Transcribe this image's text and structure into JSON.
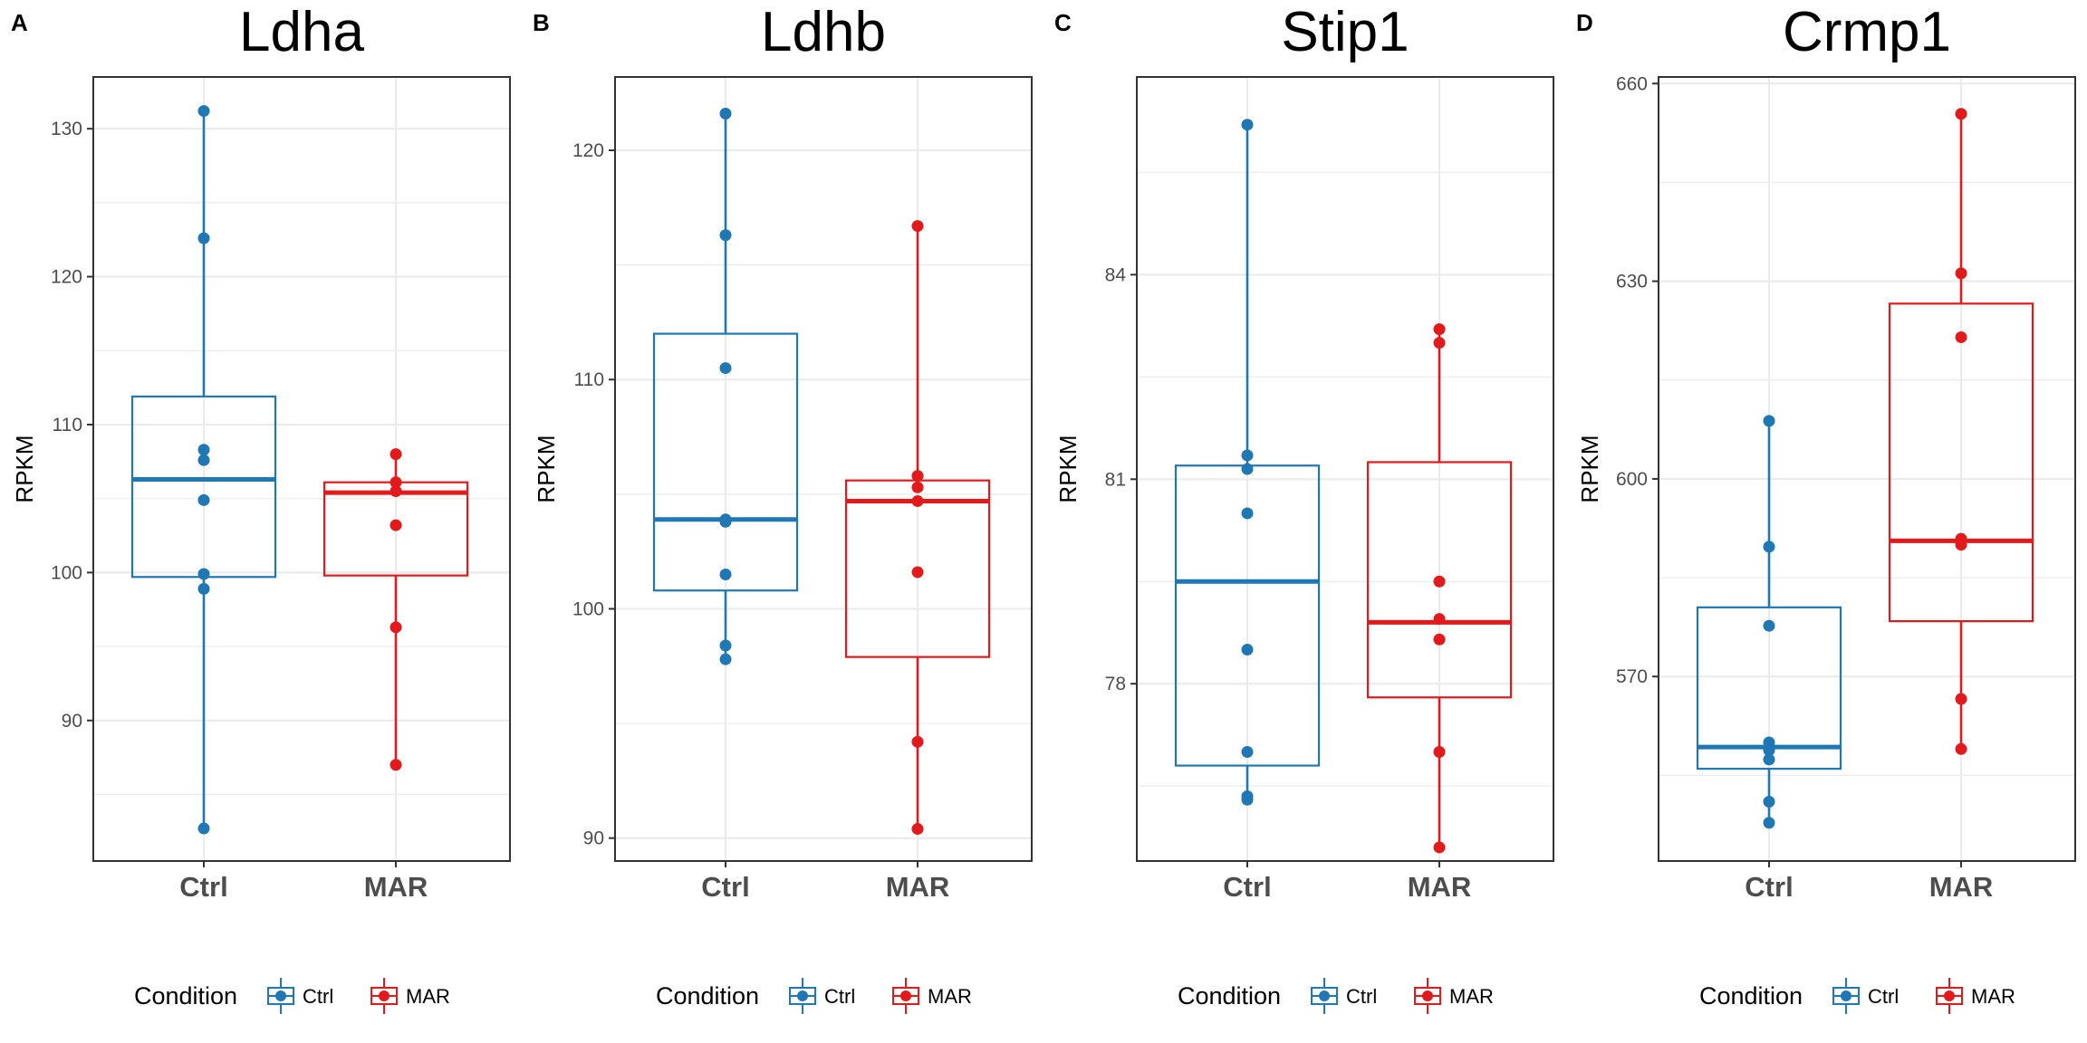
{
  "colors": {
    "ctrl": "#1F77B4",
    "mar": "#E31A1C",
    "axis_text": "#4D4D4D",
    "grid": "#EBEBEB",
    "panel_border": "#333333"
  },
  "legend": {
    "title": "Condition",
    "entries": [
      "Ctrl",
      "MAR"
    ]
  },
  "chart_data": [
    {
      "panel": "A",
      "type": "boxplot",
      "title": "Ldha",
      "ylabel": "RPKM",
      "xlabel": "",
      "categories": [
        "Ctrl",
        "MAR"
      ],
      "ylim": [
        80.5,
        133.5
      ],
      "yticks": [
        90,
        100,
        110,
        120,
        130
      ],
      "grid": true,
      "legend_position": "bottom",
      "series": [
        {
          "name": "Ctrl",
          "q1": 99.7,
          "median": 106.3,
          "q3": 111.9,
          "whisker_low": 82.7,
          "whisker_high": 131.2,
          "points": [
            131.2,
            122.6,
            108.3,
            107.6,
            104.9,
            99.9,
            98.9,
            82.7
          ]
        },
        {
          "name": "MAR",
          "q1": 99.8,
          "median": 105.4,
          "q3": 106.1,
          "whisker_low": 87.0,
          "whisker_high": 108.0,
          "points": [
            108.0,
            106.1,
            105.5,
            103.2,
            96.3,
            87.0
          ]
        }
      ]
    },
    {
      "panel": "B",
      "type": "boxplot",
      "title": "Ldhb",
      "ylabel": "RPKM",
      "xlabel": "",
      "categories": [
        "Ctrl",
        "MAR"
      ],
      "ylim": [
        89.0,
        123.2
      ],
      "yticks": [
        90,
        100,
        110,
        120
      ],
      "grid": true,
      "legend_position": "bottom",
      "series": [
        {
          "name": "Ctrl",
          "q1": 100.8,
          "median": 103.9,
          "q3": 112.0,
          "whisker_low": 97.8,
          "whisker_high": 121.6,
          "points": [
            121.6,
            116.3,
            110.5,
            103.9,
            103.8,
            101.5,
            98.4,
            97.8
          ]
        },
        {
          "name": "MAR",
          "q1": 97.9,
          "median": 104.7,
          "q3": 105.6,
          "whisker_low": 90.4,
          "whisker_high": 116.7,
          "points": [
            116.7,
            105.8,
            105.3,
            104.7,
            101.6,
            94.2,
            90.4
          ]
        }
      ]
    },
    {
      "panel": "C",
      "type": "boxplot",
      "title": "Stip1",
      "ylabel": "RPKM",
      "xlabel": "",
      "categories": [
        "Ctrl",
        "MAR"
      ],
      "ylim": [
        75.4,
        86.9
      ],
      "yticks": [
        78,
        81,
        84
      ],
      "grid": true,
      "legend_position": "bottom",
      "series": [
        {
          "name": "Ctrl",
          "q1": 76.8,
          "median": 79.5,
          "q3": 81.2,
          "whisker_low": 76.3,
          "whisker_high": 86.2,
          "points": [
            86.2,
            81.35,
            81.15,
            80.5,
            78.5,
            77.0,
            76.35,
            76.3
          ]
        },
        {
          "name": "MAR",
          "q1": 77.8,
          "median": 78.9,
          "q3": 81.25,
          "whisker_low": 75.6,
          "whisker_high": 83.2,
          "points": [
            83.2,
            83.0,
            79.5,
            78.95,
            78.65,
            77.0,
            75.6
          ]
        }
      ]
    },
    {
      "panel": "D",
      "type": "boxplot",
      "title": "Crmp1",
      "ylabel": "RPKM",
      "xlabel": "",
      "categories": [
        "Ctrl",
        "MAR"
      ],
      "ylim": [
        542.0,
        661.0
      ],
      "yticks": [
        570,
        600,
        630,
        660
      ],
      "grid": true,
      "legend_position": "bottom",
      "series": [
        {
          "name": "Ctrl",
          "q1": 556.0,
          "median": 559.3,
          "q3": 580.5,
          "whisker_low": 547.8,
          "whisker_high": 608.8,
          "points": [
            608.8,
            589.7,
            577.7,
            560.0,
            558.8,
            557.4,
            551.0,
            547.8
          ]
        },
        {
          "name": "MAR",
          "q1": 578.4,
          "median": 590.6,
          "q3": 626.6,
          "whisker_low": 559.0,
          "whisker_high": 655.4,
          "points": [
            655.4,
            631.2,
            621.5,
            590.9,
            590.0,
            566.6,
            559.0
          ]
        }
      ]
    }
  ]
}
